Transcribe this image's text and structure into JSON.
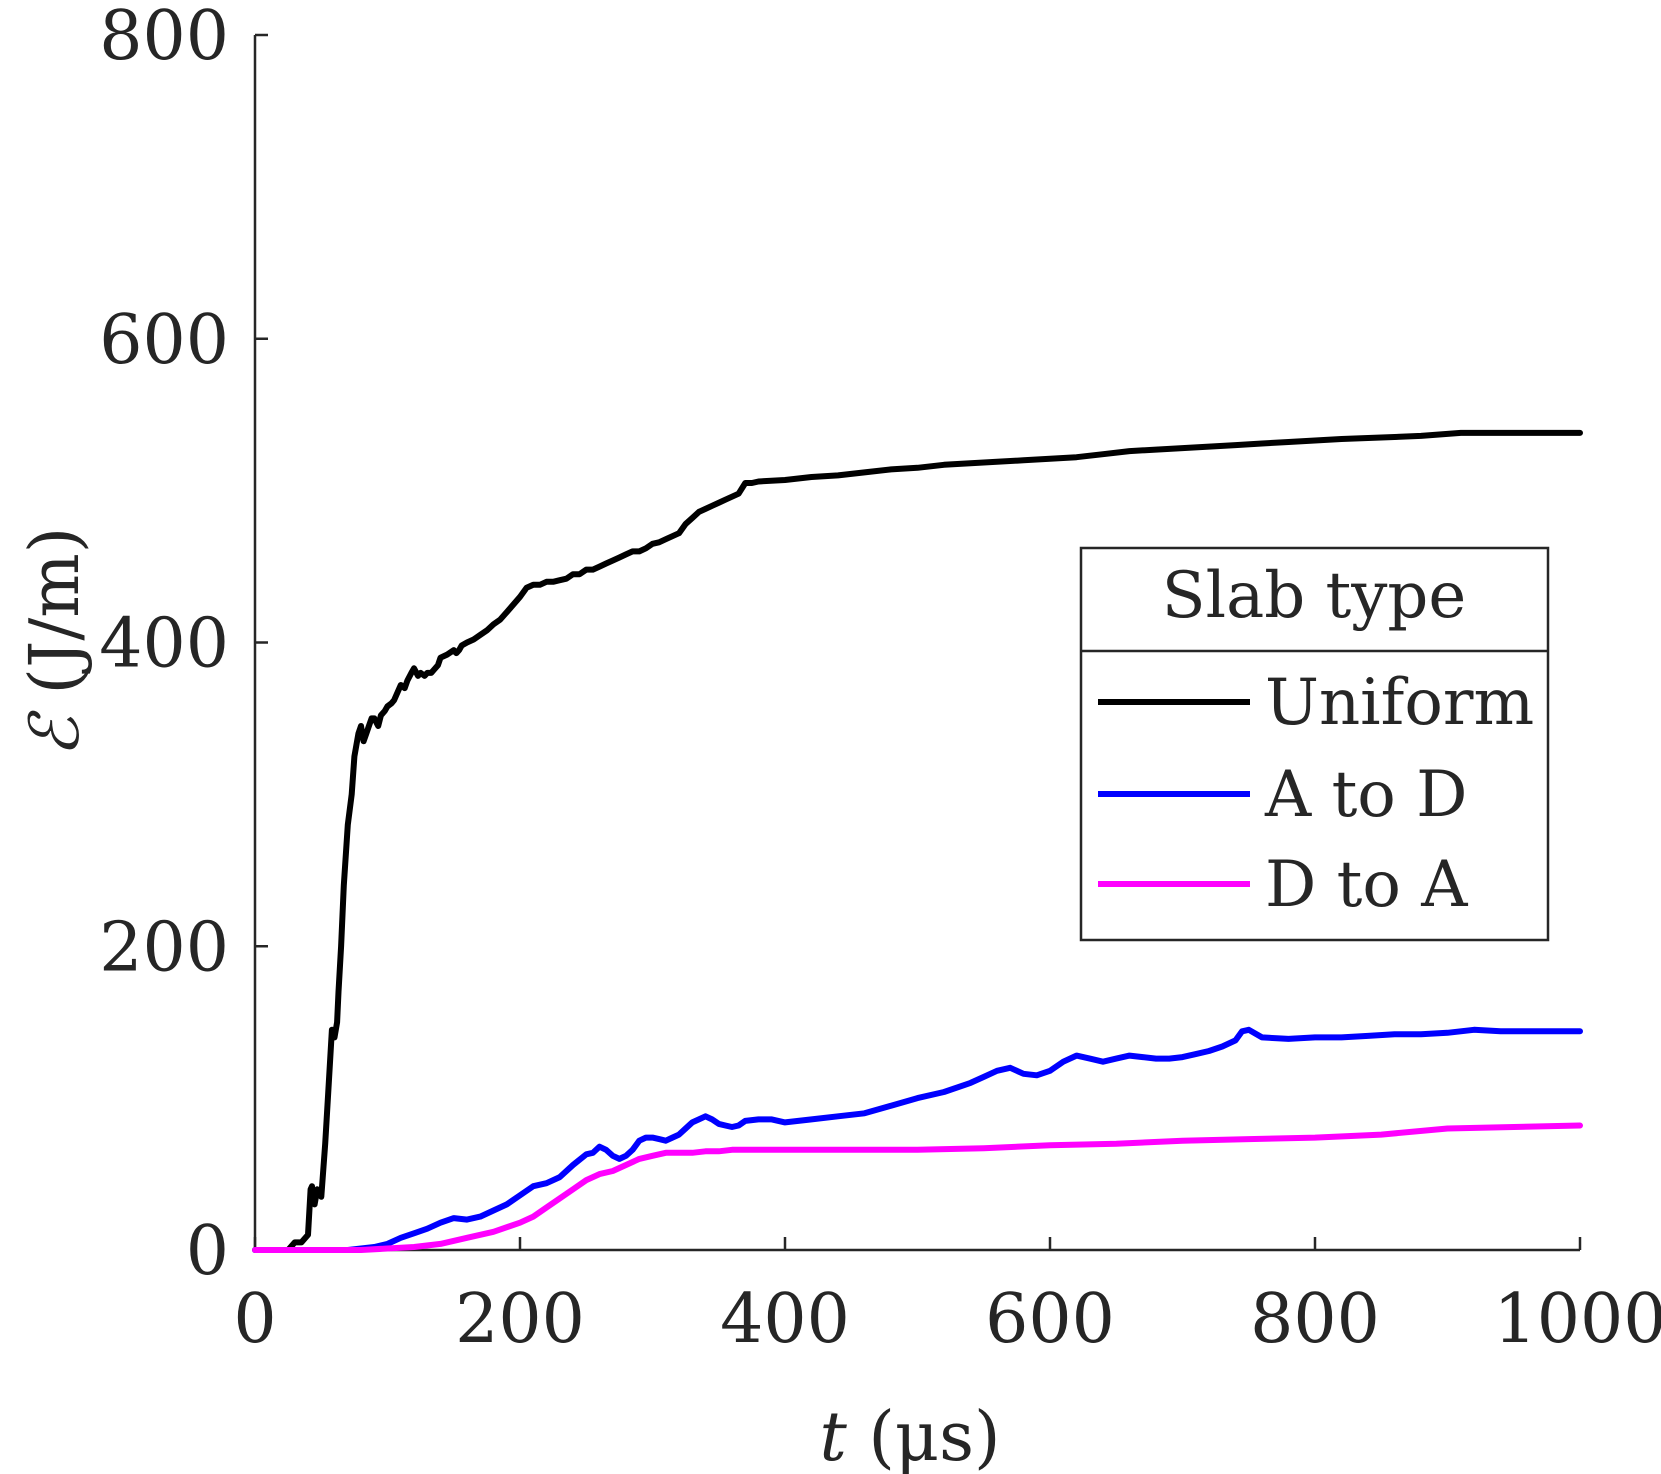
{
  "chart_data": {
    "type": "line",
    "title": "",
    "xlabel_var": "t",
    "xlabel_unit": " (μs)",
    "ylabel_var": "ℰ",
    "ylabel_unit": " (J/m)",
    "xlim": [
      0,
      1000
    ],
    "ylim": [
      0,
      800
    ],
    "xticks": [
      0,
      200,
      400,
      600,
      800,
      1000
    ],
    "yticks": [
      0,
      200,
      400,
      600,
      800
    ],
    "grid": false,
    "legend": {
      "title": "Slab type",
      "placement": "right-middle"
    },
    "series": [
      {
        "name": "Uniform",
        "color": "#000000",
        "x": [
          0,
          25,
          30,
          35,
          40,
          42,
          43,
          45,
          47,
          50,
          53,
          55,
          58,
          60,
          62,
          63,
          65,
          67,
          70,
          73,
          75,
          78,
          80,
          82,
          84,
          86,
          88,
          90,
          93,
          95,
          98,
          100,
          103,
          105,
          108,
          110,
          113,
          115,
          118,
          120,
          123,
          125,
          128,
          130,
          133,
          135,
          138,
          140,
          145,
          150,
          152,
          154,
          156,
          160,
          165,
          170,
          175,
          180,
          185,
          190,
          195,
          200,
          205,
          210,
          215,
          220,
          225,
          230,
          235,
          240,
          245,
          250,
          255,
          260,
          265,
          270,
          275,
          280,
          285,
          290,
          295,
          300,
          305,
          310,
          315,
          320,
          325,
          330,
          335,
          340,
          345,
          350,
          355,
          360,
          365,
          370,
          375,
          380,
          400,
          420,
          440,
          460,
          480,
          500,
          520,
          540,
          560,
          580,
          600,
          620,
          640,
          660,
          680,
          700,
          720,
          740,
          760,
          780,
          800,
          820,
          850,
          880,
          910,
          940,
          970,
          1000
        ],
        "values": [
          0,
          0,
          5,
          5,
          10,
          40,
          42,
          30,
          40,
          35,
          70,
          100,
          145,
          140,
          150,
          170,
          200,
          240,
          280,
          300,
          325,
          340,
          345,
          335,
          340,
          345,
          350,
          350,
          345,
          352,
          355,
          358,
          360,
          362,
          368,
          372,
          370,
          375,
          380,
          383,
          378,
          380,
          378,
          380,
          380,
          382,
          385,
          390,
          392,
          395,
          393,
          395,
          398,
          400,
          402,
          405,
          408,
          412,
          415,
          420,
          425,
          430,
          436,
          438,
          438,
          440,
          440,
          441,
          442,
          445,
          445,
          448,
          448,
          450,
          452,
          454,
          456,
          458,
          460,
          460,
          462,
          465,
          466,
          468,
          470,
          472,
          478,
          482,
          486,
          488,
          490,
          492,
          494,
          496,
          498,
          505,
          505,
          506,
          507,
          509,
          510,
          512,
          514,
          515,
          517,
          518,
          519,
          520,
          521,
          522,
          524,
          526,
          527,
          528,
          529,
          530,
          531,
          532,
          533,
          534,
          535,
          536,
          538,
          538,
          538,
          538
        ]
      },
      {
        "name": "A to D",
        "color": "#0000ff",
        "x": [
          0,
          50,
          70,
          90,
          100,
          110,
          120,
          130,
          140,
          150,
          160,
          170,
          180,
          190,
          200,
          210,
          220,
          230,
          240,
          250,
          255,
          260,
          265,
          270,
          275,
          280,
          285,
          290,
          295,
          300,
          305,
          310,
          315,
          320,
          325,
          330,
          335,
          340,
          345,
          350,
          355,
          360,
          365,
          370,
          380,
          390,
          400,
          420,
          440,
          460,
          480,
          500,
          520,
          540,
          550,
          560,
          570,
          580,
          590,
          600,
          610,
          620,
          630,
          640,
          650,
          660,
          670,
          680,
          690,
          700,
          710,
          720,
          730,
          740,
          745,
          750,
          760,
          780,
          800,
          820,
          840,
          860,
          880,
          900,
          920,
          940,
          960,
          980,
          1000
        ],
        "values": [
          0,
          0,
          0,
          2,
          4,
          8,
          11,
          14,
          18,
          21,
          20,
          22,
          26,
          30,
          36,
          42,
          44,
          48,
          56,
          63,
          64,
          68,
          66,
          62,
          60,
          62,
          66,
          72,
          74,
          74,
          73,
          72,
          74,
          76,
          80,
          84,
          86,
          88,
          86,
          83,
          82,
          81,
          82,
          85,
          86,
          86,
          84,
          86,
          88,
          90,
          95,
          100,
          104,
          110,
          114,
          118,
          120,
          116,
          115,
          118,
          124,
          128,
          126,
          124,
          126,
          128,
          127,
          126,
          126,
          127,
          129,
          131,
          134,
          138,
          144,
          145,
          140,
          139,
          140,
          140,
          141,
          142,
          142,
          143,
          145,
          144,
          144,
          144,
          144
        ]
      },
      {
        "name": "D to A",
        "color": "#ff00ff",
        "x": [
          0,
          80,
          100,
          120,
          140,
          160,
          180,
          200,
          210,
          220,
          230,
          240,
          250,
          260,
          270,
          280,
          290,
          300,
          310,
          320,
          330,
          340,
          350,
          360,
          370,
          380,
          400,
          450,
          500,
          550,
          600,
          650,
          700,
          750,
          800,
          850,
          900,
          950,
          1000
        ],
        "values": [
          0,
          0,
          1,
          2,
          4,
          8,
          12,
          18,
          22,
          28,
          34,
          40,
          46,
          50,
          52,
          56,
          60,
          62,
          64,
          64,
          64,
          65,
          65,
          66,
          66,
          66,
          66,
          66,
          66,
          67,
          69,
          70,
          72,
          73,
          74,
          76,
          80,
          81,
          82
        ]
      }
    ]
  }
}
